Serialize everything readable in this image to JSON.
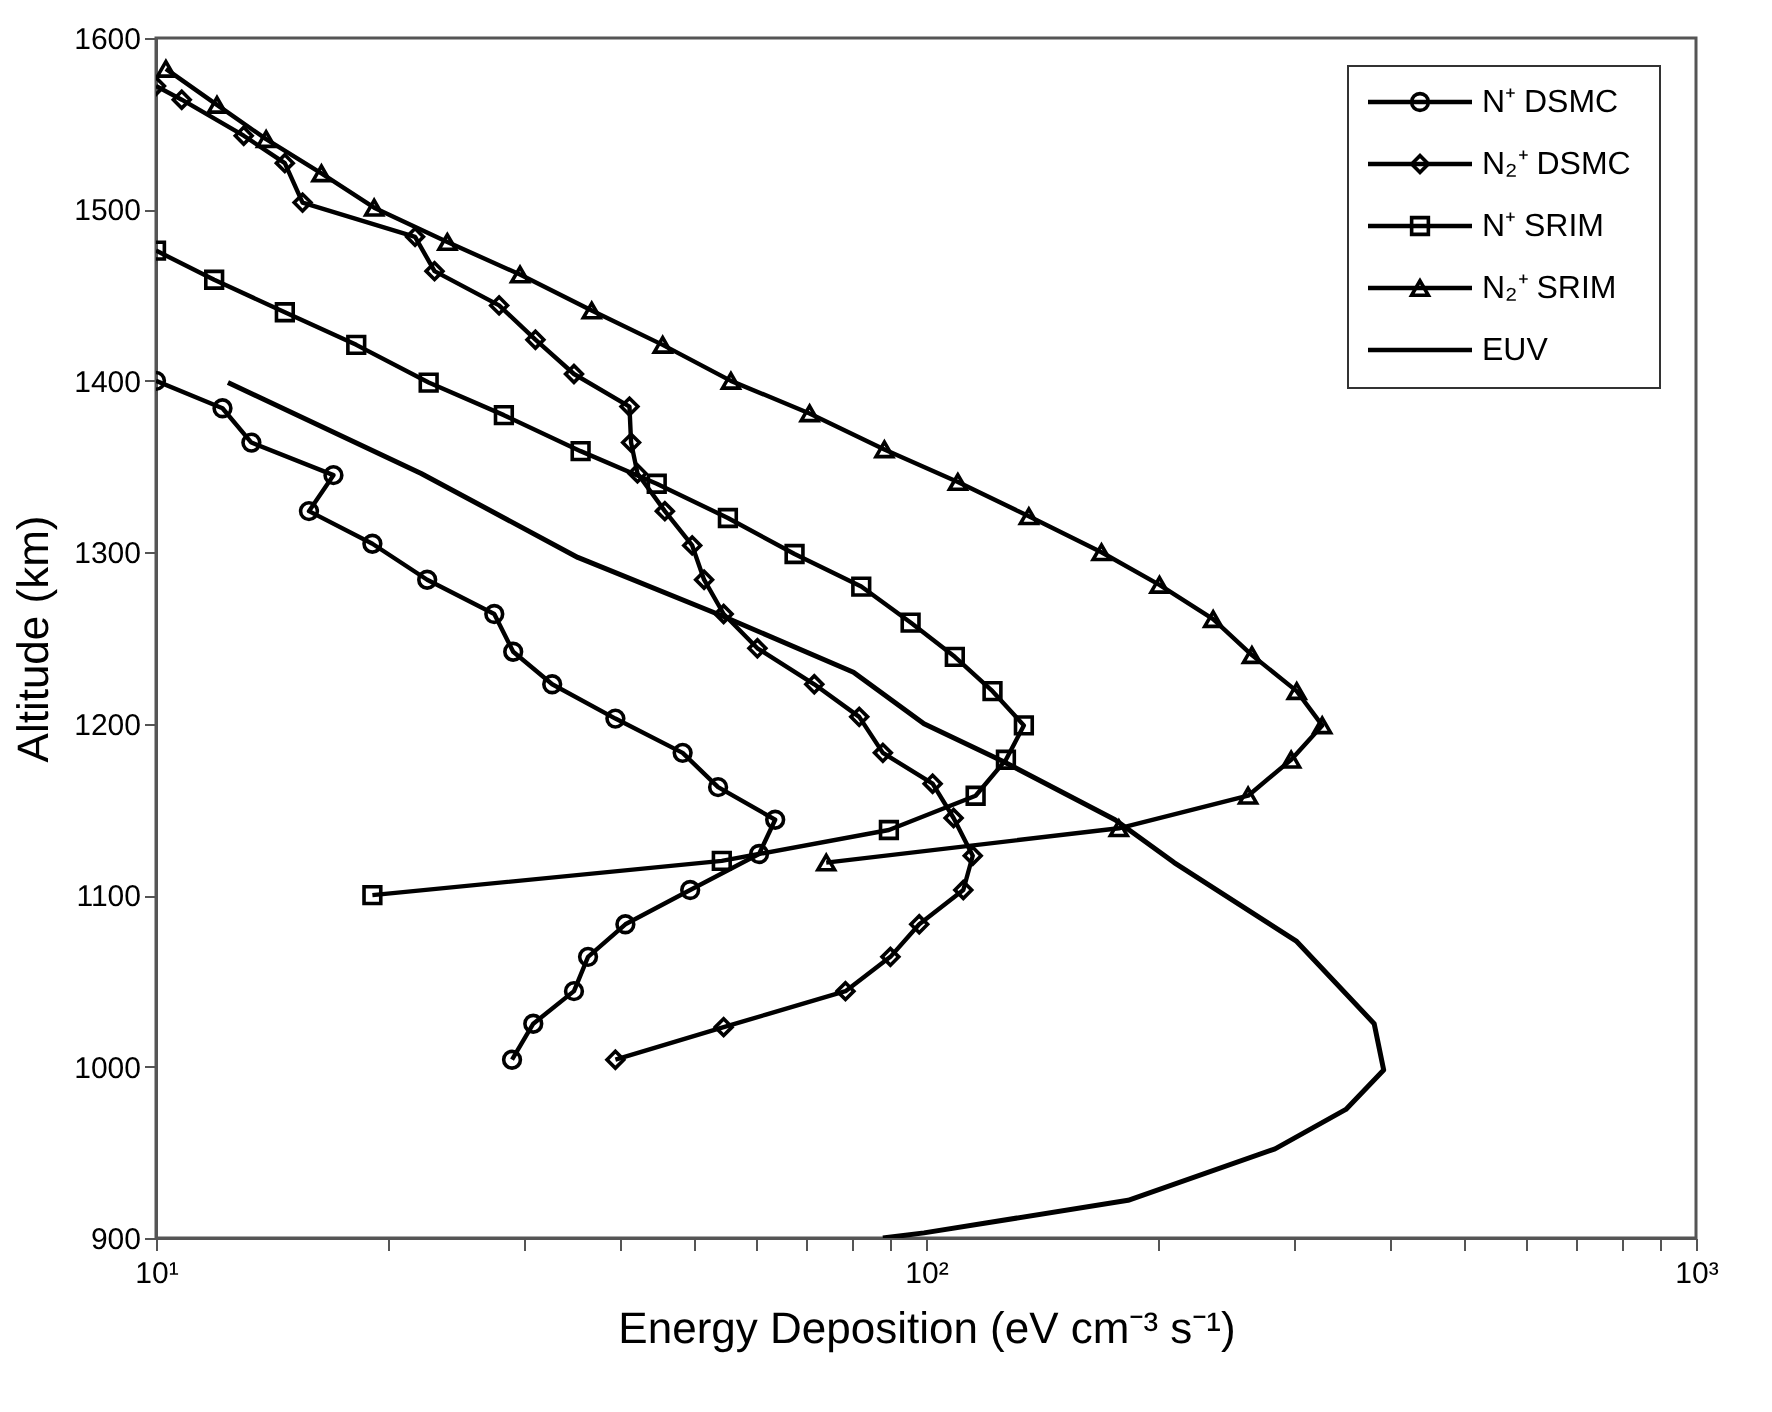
{
  "chart_data": {
    "type": "line",
    "xlabel": "Energy Deposition (eV cm⁻³ s⁻¹)",
    "ylabel": "Altitude (km)",
    "log": "x",
    "xlim": [
      10,
      1000
    ],
    "ylim": [
      900,
      1600
    ],
    "xticks": [
      {
        "value": 10,
        "label": "10¹"
      },
      {
        "value": 20,
        "label": null
      },
      {
        "value": 30,
        "label": null
      },
      {
        "value": 40,
        "label": null
      },
      {
        "value": 50,
        "label": null
      },
      {
        "value": 60,
        "label": null
      },
      {
        "value": 70,
        "label": null
      },
      {
        "value": 80,
        "label": null
      },
      {
        "value": 90,
        "label": null
      },
      {
        "value": 100,
        "label": "10²"
      },
      {
        "value": 200,
        "label": null
      },
      {
        "value": 300,
        "label": null
      },
      {
        "value": 400,
        "label": null
      },
      {
        "value": 500,
        "label": null
      },
      {
        "value": 600,
        "label": null
      },
      {
        "value": 700,
        "label": null
      },
      {
        "value": 800,
        "label": null
      },
      {
        "value": 900,
        "label": null
      },
      {
        "value": 1000,
        "label": "10³"
      }
    ],
    "yticks": [
      900,
      1000,
      1100,
      1200,
      1300,
      1400,
      1500,
      1600
    ],
    "grid": false,
    "legend": "top right",
    "line_style": "solid",
    "series": [
      {
        "name": "N⁺ DSMC",
        "color": "#000000",
        "marker": "circle",
        "x": [
          10,
          12.2,
          13.3,
          17.0,
          15.8,
          19.1,
          22.5,
          27.5,
          29.1,
          32.7,
          39.5,
          48.3,
          53.7,
          63.7,
          60.7,
          49.4,
          40.7,
          36.4,
          34.9,
          30.9,
          29.0
        ],
        "values": [
          1400,
          1384,
          1364,
          1345,
          1324,
          1305,
          1284,
          1264,
          1242,
          1223,
          1203,
          1183,
          1163,
          1144,
          1124,
          1103,
          1083,
          1064,
          1044,
          1025,
          1004
        ]
      },
      {
        "name": "N₂⁺ DSMC",
        "color": "#000000",
        "marker": "diamond",
        "x": [
          10,
          10.8,
          13.0,
          14.7,
          15.5,
          21.7,
          23.0,
          27.9,
          31.1,
          34.9,
          41.2,
          41.4,
          42.2,
          45.8,
          49.7,
          51.5,
          54.6,
          60.4,
          71.6,
          81.9,
          87.9,
          102,
          108.6,
          115,
          111.8,
          98,
          89.9,
          78.6,
          54.6,
          39.5
        ],
        "values": [
          1572,
          1564,
          1543,
          1527,
          1504,
          1484,
          1464,
          1444,
          1424,
          1404,
          1385,
          1364,
          1346,
          1324,
          1304,
          1284,
          1264,
          1244,
          1223,
          1204,
          1183,
          1165,
          1145,
          1123,
          1103,
          1083,
          1064,
          1044,
          1023,
          1004
        ]
      },
      {
        "name": "N⁺ SRIM",
        "color": "#000000",
        "marker": "square",
        "x": [
          10,
          11.9,
          14.7,
          18.2,
          22.6,
          28.3,
          35.6,
          44.7,
          55.3,
          67.5,
          82.4,
          95.5,
          109,
          122,
          134,
          127,
          116,
          89.5,
          54.3,
          19.1
        ],
        "values": [
          1476,
          1459,
          1440,
          1421,
          1399,
          1380,
          1359,
          1340,
          1320,
          1299,
          1280,
          1259,
          1239,
          1219,
          1199,
          1179,
          1158,
          1138,
          1120,
          1100
        ]
      },
      {
        "name": "N₂⁺ SRIM",
        "color": "#000000",
        "marker": "triangle",
        "x": [
          10.3,
          12.0,
          13.9,
          16.4,
          19.2,
          23.9,
          29.7,
          36.8,
          45.5,
          55.8,
          70.6,
          88.3,
          110,
          136,
          169,
          201,
          236,
          265,
          303,
          327,
          298,
          262,
          178,
          74.2
        ],
        "values": [
          1582,
          1561,
          1541,
          1521,
          1501,
          1481,
          1462,
          1441,
          1421,
          1400,
          1381,
          1360,
          1341,
          1321,
          1300,
          1281,
          1261,
          1240,
          1219,
          1199,
          1179,
          1158,
          1139,
          1119
        ]
      },
      {
        "name": "EUV",
        "color": "#000000",
        "marker": "none",
        "x": [
          12.4,
          22.1,
          35.3,
          54.3,
          80.5,
          99.4,
          126,
          176,
          210,
          303,
          382,
          393,
          351,
          284,
          183,
          99.4,
          87.9
        ],
        "values": [
          1399,
          1346,
          1297,
          1263,
          1230,
          1200,
          1178,
          1144,
          1119,
          1073,
          1025,
          998,
          975,
          952,
          922,
          903,
          900
        ]
      }
    ]
  }
}
